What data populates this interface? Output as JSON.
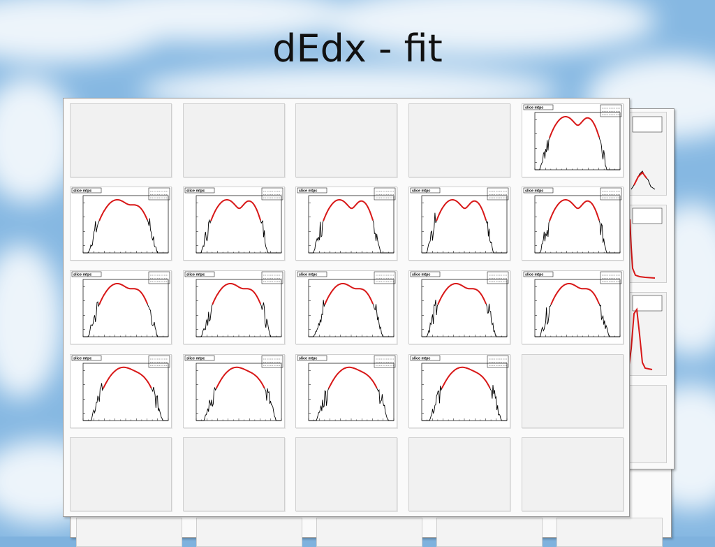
{
  "slide": {
    "title": "dEdx - fit"
  },
  "chart_data": {
    "type": "line",
    "title": "slice mtpc",
    "grid": "5x5 canvas of histograms, pads 1-4 and 20-25 empty",
    "fit_color": "#d81818",
    "histogram_color": "#000000",
    "y_scale": "log",
    "panels": [
      {
        "pad": 5,
        "title": "slice mtpc",
        "shape": "double-peak"
      },
      {
        "pad": 6,
        "title": "slice mtpc",
        "shape": "peak-shoulder"
      },
      {
        "pad": 7,
        "title": "slice mtpc",
        "shape": "double-peak"
      },
      {
        "pad": 8,
        "title": "slice mtpc",
        "shape": "double-peak"
      },
      {
        "pad": 9,
        "title": "slice mtpc",
        "shape": "double-peak"
      },
      {
        "pad": 10,
        "title": "slice mtpc",
        "shape": "double-peak"
      },
      {
        "pad": 11,
        "title": "slice mtpc",
        "shape": "peak-shoulder"
      },
      {
        "pad": 12,
        "title": "slice mtpc",
        "shape": "peak-shoulder"
      },
      {
        "pad": 13,
        "title": "slice mtpc",
        "shape": "peak-shoulder"
      },
      {
        "pad": 14,
        "title": "slice mtpc",
        "shape": "peak-shoulder"
      },
      {
        "pad": 15,
        "title": "slice mtpc",
        "shape": "peak-shoulder"
      },
      {
        "pad": 16,
        "title": "slice mtpc",
        "shape": "single-peak"
      },
      {
        "pad": 17,
        "title": "slice mtpc",
        "shape": "single-peak"
      },
      {
        "pad": 18,
        "title": "slice mtpc",
        "shape": "single-peak"
      },
      {
        "pad": 19,
        "title": "slice mtpc",
        "shape": "single-peak"
      }
    ]
  }
}
